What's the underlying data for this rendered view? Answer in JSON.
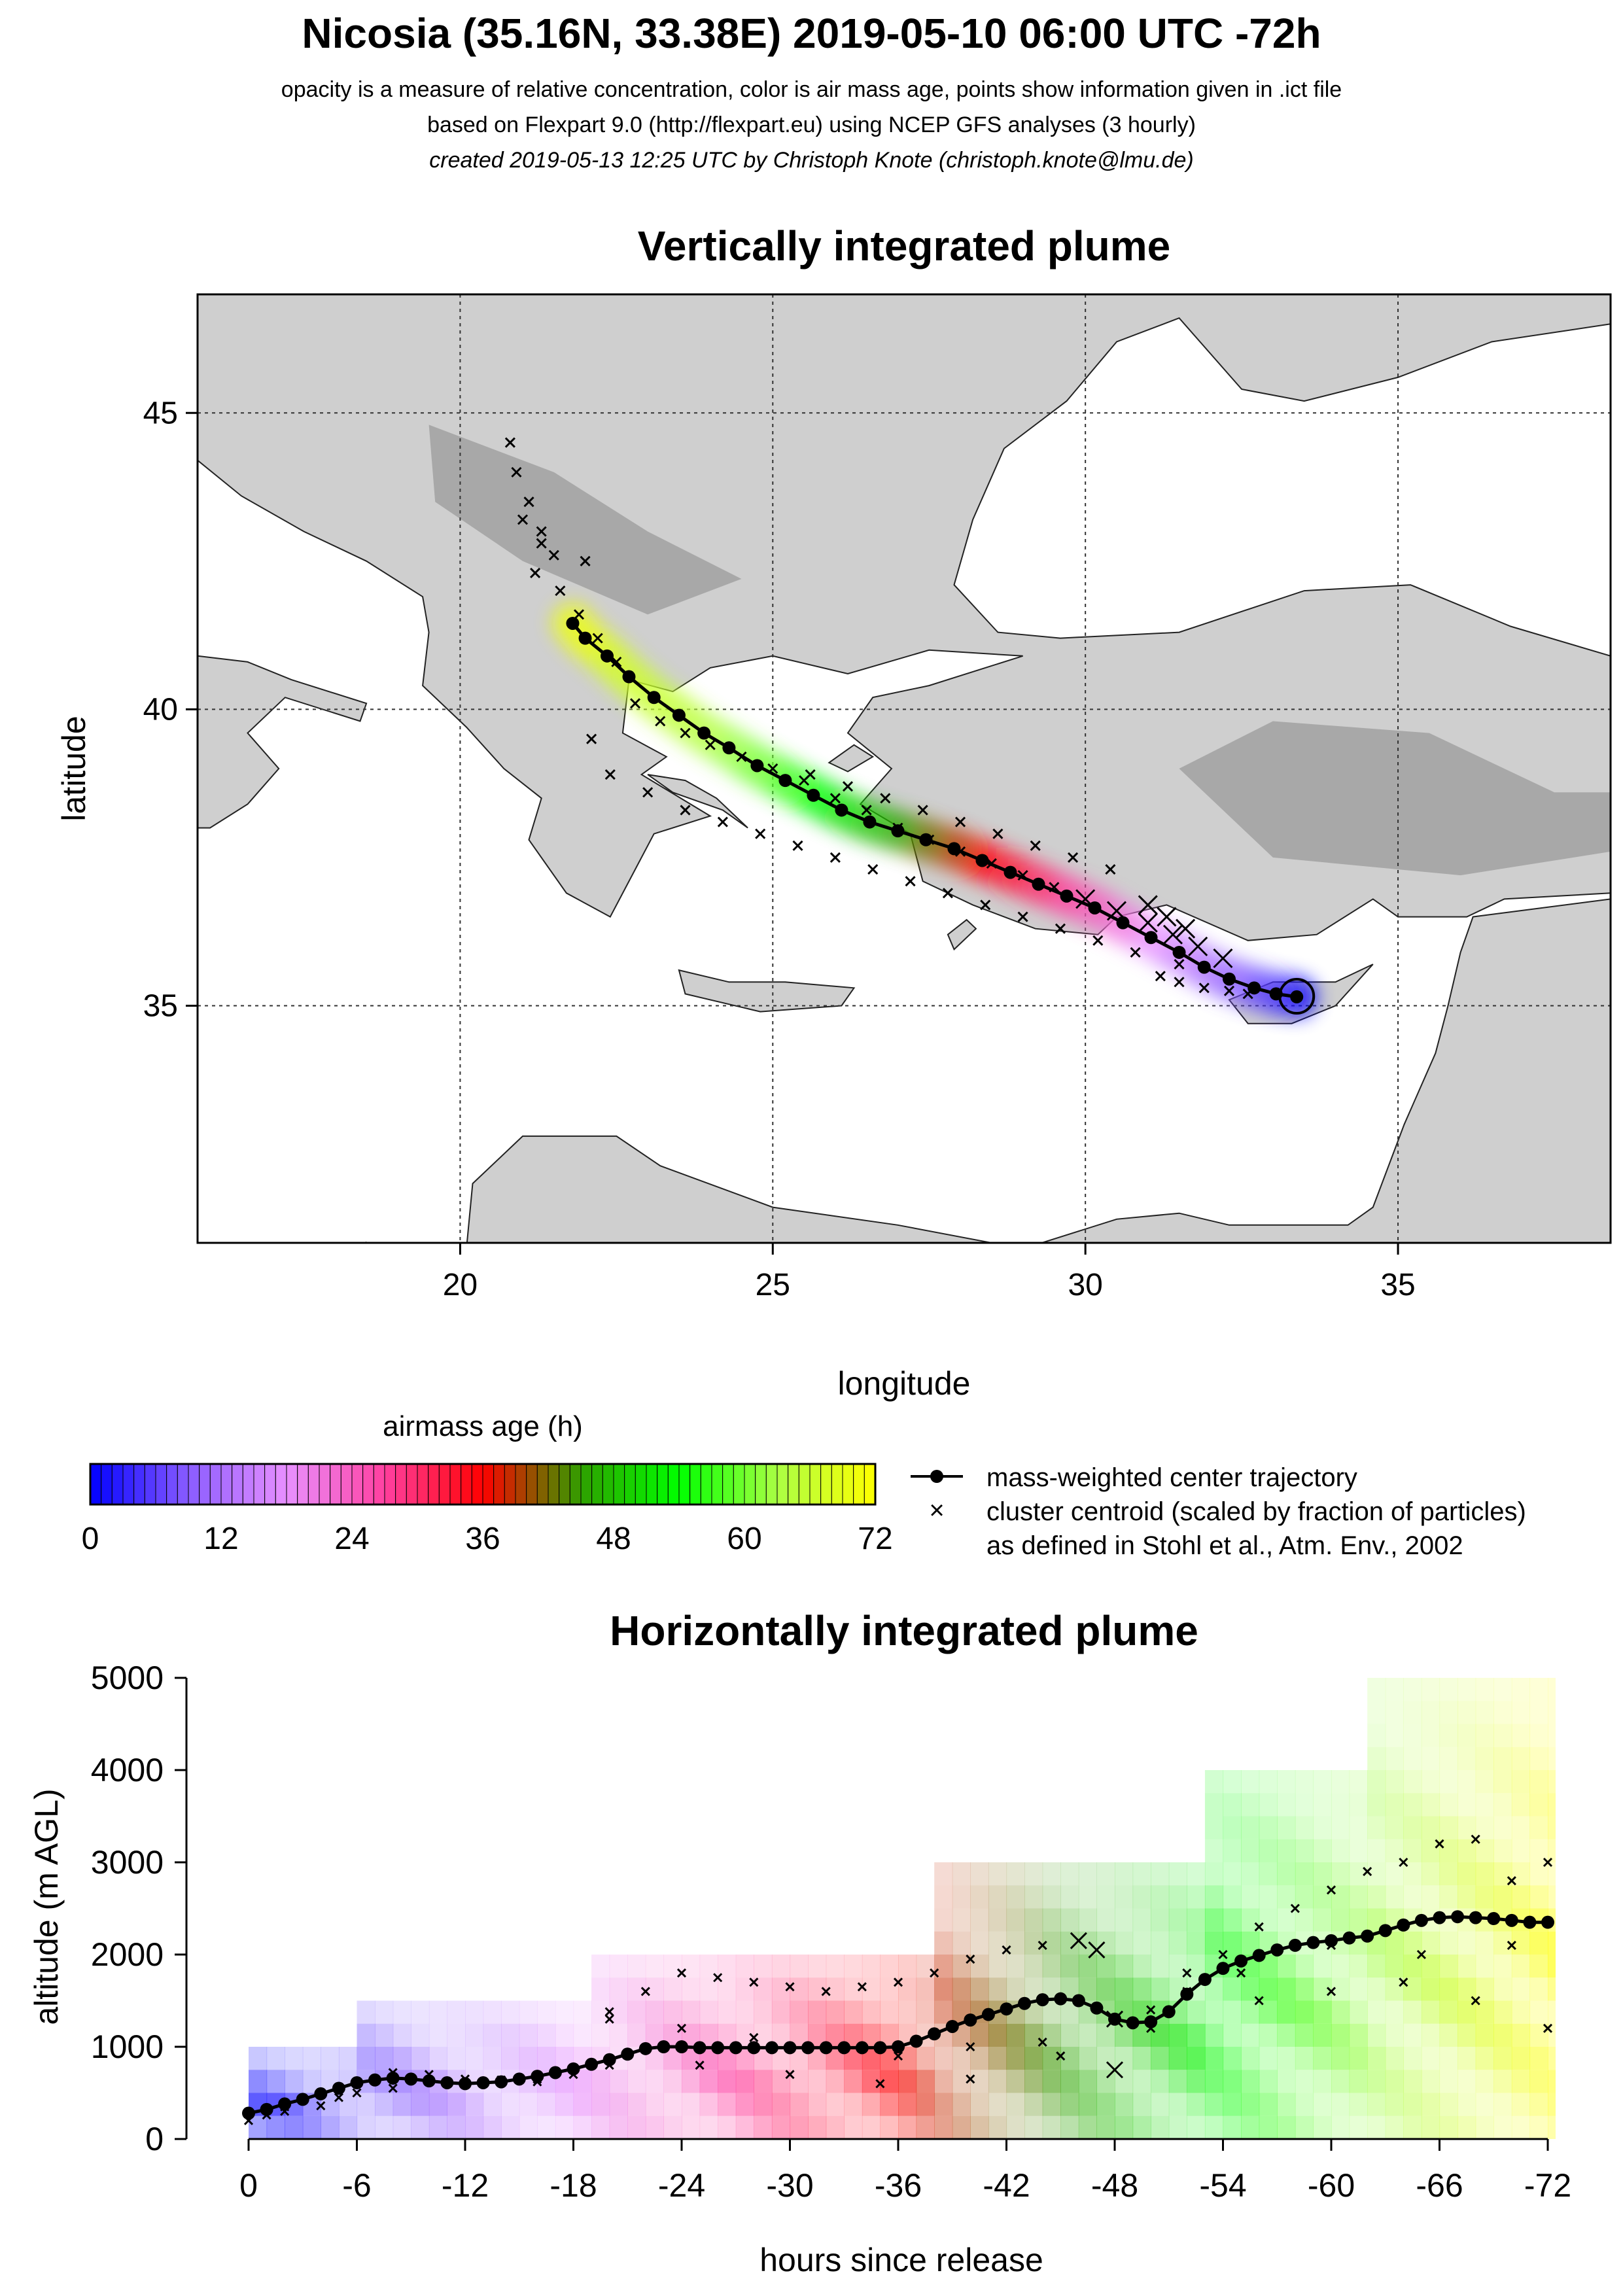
{
  "header": {
    "title": "Nicosia (35.16N, 33.38E) 2019-05-10 06:00 UTC -72h",
    "subtitle1": "opacity is a measure of relative concentration, color is air mass age, points show information given in .ict file",
    "subtitle2": "based on Flexpart 9.0 (http://flexpart.eu) using NCEP GFS analyses (3 hourly)",
    "subtitle3": "created 2019-05-13 12:25 UTC by Christoph Knote (christoph.knote@lmu.de)"
  },
  "colors": {
    "background": "#ffffff",
    "land": "#d0d0d0",
    "sea": "#ffffff",
    "age_stops": [
      "#0000ff",
      "#8a5cff",
      "#e890ff",
      "#ff40a0",
      "#ff0000",
      "#2fa000",
      "#00ff00",
      "#aaff44",
      "#ffff00"
    ]
  },
  "chart_data": [
    {
      "type": "map",
      "title": "Vertically integrated plume",
      "xlabel": "longitude",
      "ylabel": "latitude",
      "xlim": [
        15.8,
        38.4
      ],
      "ylim": [
        31.0,
        47.0
      ],
      "xticks": [
        20,
        25,
        30,
        35
      ],
      "yticks": [
        35,
        40,
        45
      ],
      "xtick_labels": [
        "20",
        "25",
        "30",
        "35"
      ],
      "ytick_labels": [
        "35",
        "40",
        "45"
      ],
      "grid": true,
      "release_point": {
        "lon": 33.38,
        "lat": 35.16
      },
      "center_trajectory": {
        "name": "mass-weighted center trajectory",
        "lon": [
          33.38,
          33.05,
          32.7,
          32.3,
          31.9,
          31.5,
          31.05,
          30.6,
          30.15,
          29.7,
          29.25,
          28.8,
          28.35,
          27.9,
          27.45,
          27.0,
          26.55,
          26.1,
          25.65,
          25.2,
          24.75,
          24.3,
          23.9,
          23.5,
          23.1,
          22.7,
          22.35,
          22.0,
          21.8
        ],
        "lat": [
          35.15,
          35.2,
          35.3,
          35.45,
          35.65,
          35.9,
          36.15,
          36.4,
          36.65,
          36.85,
          37.05,
          37.25,
          37.45,
          37.65,
          37.8,
          37.95,
          38.1,
          38.3,
          38.55,
          38.8,
          39.05,
          39.35,
          39.6,
          39.9,
          40.2,
          40.55,
          40.9,
          41.2,
          41.45
        ],
        "age_h": [
          0,
          3,
          6,
          9,
          12,
          15,
          18,
          21,
          24,
          27,
          30,
          33,
          36,
          39,
          42,
          45,
          48,
          51,
          54,
          57,
          60,
          62,
          64,
          65,
          66,
          67,
          68,
          70,
          72
        ]
      },
      "cluster_centroids": {
        "name": "cluster centroid (scaled by fraction of particles)",
        "lon": [
          20.8,
          20.9,
          21.1,
          21.3,
          21.5,
          21.2,
          21.6,
          21.9,
          22.2,
          22.5,
          21.0,
          21.3,
          22.0,
          22.8,
          23.2,
          23.6,
          24.0,
          24.5,
          25.0,
          25.5,
          26.0,
          26.5,
          27.0,
          27.5,
          28.0,
          28.5,
          29.0,
          29.5,
          30.0,
          30.5,
          31.0,
          31.4,
          31.8,
          32.2,
          31.5,
          30.8,
          30.2,
          29.6,
          29.0,
          28.4,
          27.8,
          27.2,
          26.6,
          26.0,
          25.4,
          24.8,
          24.2,
          23.6,
          23.0,
          22.4,
          22.1,
          31.0,
          31.3,
          31.6,
          30.4,
          29.8,
          29.2,
          28.6,
          28.0,
          27.4,
          26.8,
          26.2,
          25.6,
          31.2,
          31.5,
          31.9,
          32.3,
          32.6
        ],
        "lat": [
          44.5,
          44.0,
          43.5,
          43.0,
          42.6,
          42.3,
          42.0,
          41.6,
          41.2,
          40.8,
          43.2,
          42.8,
          42.5,
          40.1,
          39.8,
          39.6,
          39.4,
          39.2,
          39.0,
          38.8,
          38.5,
          38.3,
          38.0,
          37.8,
          37.6,
          37.4,
          37.2,
          37.0,
          36.8,
          36.6,
          36.4,
          36.2,
          36.0,
          35.8,
          35.7,
          35.9,
          36.1,
          36.3,
          36.5,
          36.7,
          36.9,
          37.1,
          37.3,
          37.5,
          37.7,
          37.9,
          38.1,
          38.3,
          38.6,
          38.9,
          39.5,
          36.7,
          36.5,
          36.3,
          37.3,
          37.5,
          37.7,
          37.9,
          38.1,
          38.3,
          38.5,
          38.7,
          38.9,
          35.5,
          35.4,
          35.3,
          35.25,
          35.2
        ],
        "size": [
          1,
          1,
          1,
          1,
          1,
          1,
          1,
          1,
          1,
          1,
          1,
          1,
          1,
          1,
          1,
          1,
          1,
          1,
          1,
          1,
          1,
          1,
          1,
          1,
          1,
          1,
          1,
          1,
          2,
          2,
          2,
          2,
          2,
          2,
          1,
          1,
          1,
          1,
          1,
          1,
          1,
          1,
          1,
          1,
          1,
          1,
          1,
          1,
          1,
          1,
          1,
          2,
          2,
          2,
          1,
          1,
          1,
          1,
          1,
          1,
          1,
          1,
          1,
          1,
          1,
          1,
          1,
          1
        ]
      }
    },
    {
      "type": "colorbar",
      "title": "airmass age (h)",
      "ticks": [
        0,
        12,
        24,
        36,
        48,
        60,
        72
      ],
      "tick_labels": [
        "0",
        "12",
        "24",
        "36",
        "48",
        "60",
        "72"
      ],
      "range": [
        0,
        72
      ]
    },
    {
      "type": "legend",
      "items": [
        {
          "symbol": "line-dot",
          "label": "mass-weighted center trajectory"
        },
        {
          "symbol": "cross",
          "label": "cluster centroid (scaled by fraction of particles)"
        },
        {
          "symbol": "none",
          "label": "as defined in Stohl et al., Atm. Env., 2002"
        }
      ]
    },
    {
      "type": "scatter",
      "title": "Horizontally integrated plume",
      "xlabel": "hours since release",
      "ylabel": "altitude (m AGL)",
      "xlim": [
        0,
        -72
      ],
      "ylim": [
        0,
        5000
      ],
      "xticks": [
        0,
        -6,
        -12,
        -18,
        -24,
        -30,
        -36,
        -42,
        -48,
        -54,
        -60,
        -66,
        -72
      ],
      "xtick_labels": [
        "0",
        "-6",
        "-12",
        "-18",
        "-24",
        "-30",
        "-36",
        "-42",
        "-48",
        "-54",
        "-60",
        "-66",
        "-72"
      ],
      "yticks": [
        0,
        1000,
        2000,
        3000,
        4000,
        5000
      ],
      "ytick_labels": [
        "0",
        "1000",
        "2000",
        "3000",
        "4000",
        "5000"
      ],
      "plume_top_m": [
        1000,
        1000,
        1000,
        1000,
        1000,
        1000,
        1500,
        1500,
        1500,
        1500,
        1500,
        1500,
        1500,
        1500,
        1500,
        1500,
        1500,
        1500,
        1500,
        2000,
        2000,
        2000,
        2000,
        2000,
        2000,
        2000,
        2000,
        2000,
        2000,
        2000,
        2000,
        2000,
        2000,
        2000,
        2000,
        2000,
        2000,
        2000,
        3000,
        3000,
        3000,
        3000,
        3000,
        3000,
        3000,
        3000,
        3000,
        3000,
        3000,
        3000,
        3000,
        3000,
        3000,
        4000,
        4000,
        4000,
        4000,
        4000,
        4000,
        4000,
        4000,
        4000,
        5000,
        5000,
        5000,
        5000,
        5000,
        5000,
        5000,
        5000,
        5000,
        5000,
        5000
      ],
      "center_trajectory": {
        "name": "mass-weighted center trajectory",
        "hours": [
          0,
          -1,
          -2,
          -3,
          -4,
          -5,
          -6,
          -7,
          -8,
          -9,
          -10,
          -11,
          -12,
          -13,
          -14,
          -15,
          -16,
          -17,
          -18,
          -19,
          -20,
          -21,
          -22,
          -23,
          -24,
          -25,
          -26,
          -27,
          -28,
          -29,
          -30,
          -31,
          -32,
          -33,
          -34,
          -35,
          -36,
          -37,
          -38,
          -39,
          -40,
          -41,
          -42,
          -43,
          -44,
          -45,
          -46,
          -47,
          -48,
          -49,
          -50,
          -51,
          -52,
          -53,
          -54,
          -55,
          -56,
          -57,
          -58,
          -59,
          -60,
          -61,
          -62,
          -63,
          -64,
          -65,
          -66,
          -67,
          -68,
          -69,
          -70,
          -71,
          -72
        ],
        "altitude_m": [
          280,
          320,
          380,
          430,
          490,
          550,
          610,
          640,
          660,
          650,
          630,
          610,
          600,
          610,
          620,
          650,
          680,
          720,
          760,
          810,
          860,
          920,
          980,
          1000,
          1000,
          990,
          990,
          990,
          990,
          990,
          990,
          990,
          990,
          990,
          990,
          990,
          1000,
          1060,
          1140,
          1220,
          1290,
          1350,
          1410,
          1470,
          1510,
          1520,
          1500,
          1420,
          1300,
          1260,
          1270,
          1380,
          1570,
          1730,
          1850,
          1930,
          1990,
          2050,
          2100,
          2130,
          2150,
          2180,
          2200,
          2260,
          2320,
          2370,
          2400,
          2410,
          2400,
          2390,
          2370,
          2350,
          2350
        ]
      },
      "cluster_centroids": {
        "name": "cluster centroid (scaled by fraction of particles)",
        "hours": [
          0,
          -1,
          -2,
          -4,
          -6,
          -8,
          -10,
          -12,
          -14,
          -16,
          -18,
          -20,
          -22,
          -24,
          -26,
          -28,
          -30,
          -32,
          -34,
          -36,
          -38,
          -40,
          -42,
          -44,
          -46,
          -47,
          -48,
          -50,
          -52,
          -54,
          -56,
          -58,
          -60,
          -62,
          -64,
          -66,
          -68,
          -70,
          -72,
          -20,
          -24,
          -28,
          -32,
          -36,
          -40,
          -44,
          -48,
          -52,
          -56,
          -60,
          -64,
          -68,
          -72,
          -2,
          -5,
          -8,
          -12,
          -16,
          -20,
          -25,
          -30,
          -35,
          -40,
          -45,
          -50,
          -55,
          -60,
          -65,
          -70
        ],
        "altitude_m": [
          200,
          260,
          300,
          360,
          500,
          720,
          700,
          650,
          640,
          620,
          700,
          1380,
          1600,
          1800,
          1750,
          1700,
          1650,
          1600,
          1650,
          1700,
          1800,
          1950,
          2050,
          2100,
          2150,
          2050,
          1300,
          1200,
          1800,
          2000,
          2300,
          2500,
          2700,
          2900,
          3000,
          3200,
          3250,
          2800,
          3000,
          1300,
          1200,
          1100,
          1000,
          900,
          1000,
          1050,
          750,
          1600,
          1500,
          1600,
          1700,
          1500,
          1200,
          350,
          450,
          550,
          600,
          650,
          800,
          800,
          700,
          600,
          650,
          900,
          1400,
          1800,
          2100,
          2000,
          2100
        ],
        "size": [
          1,
          1,
          1,
          1,
          1,
          1,
          1,
          1,
          1,
          1,
          1,
          1,
          1,
          1,
          1,
          1,
          1,
          1,
          1,
          1,
          1,
          1,
          1,
          1,
          2,
          2,
          2,
          1,
          1,
          1,
          1,
          1,
          1,
          1,
          1,
          1,
          1,
          1,
          1,
          1,
          1,
          1,
          1,
          1,
          1,
          1,
          2,
          1,
          1,
          1,
          1,
          1,
          1,
          1,
          1,
          1,
          1,
          1,
          1,
          1,
          1,
          1,
          1,
          1,
          1,
          1,
          1,
          1,
          1
        ]
      }
    }
  ]
}
